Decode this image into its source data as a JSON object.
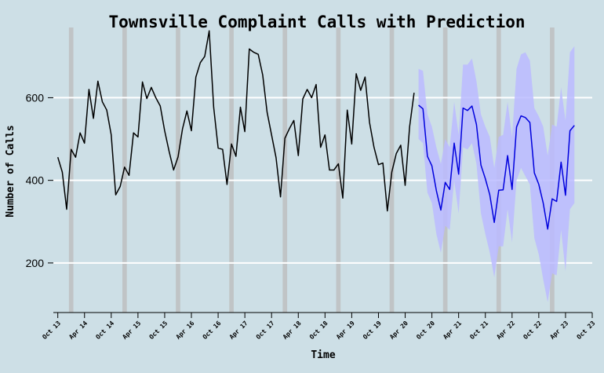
{
  "chart_data": {
    "type": "line",
    "title": "Townsville Complaint Calls with Prediction",
    "xlabel": "Time",
    "ylabel": "Number of Calls",
    "x_ticks": [
      "Oct 13",
      "Apr 14",
      "Oct 14",
      "Apr 15",
      "Oct 15",
      "Apr 16",
      "Oct 16",
      "Apr 17",
      "Oct 17",
      "Apr 18",
      "Oct 18",
      "Apr 19",
      "Oct 19",
      "Apr 20",
      "Oct 20",
      "Apr 21",
      "Oct 21",
      "Apr 22",
      "Oct 22",
      "Apr 23",
      "Oct 23"
    ],
    "y_ticks": [
      200,
      400,
      600
    ],
    "ylim": [
      80,
      770
    ],
    "xlim": [
      -1,
      120
    ],
    "grid": "horizontal",
    "highlight_bands": [
      "Jan 14",
      "Jan 15",
      "Jan 16",
      "Jan 17",
      "Jan 18",
      "Jan 19",
      "Jan 20",
      "Jan 21",
      "Jan 22",
      "Jan 23"
    ],
    "series": [
      {
        "start": "Oct 13",
        "values": [
          456,
          420,
          330,
          475,
          456,
          515,
          490,
          620,
          550,
          640,
          590,
          570,
          510,
          365,
          385,
          432,
          412,
          515,
          505,
          638,
          598,
          625,
          600,
          580,
          520,
          470,
          425,
          457,
          525,
          568,
          520,
          650,
          685,
          700,
          762,
          577,
          478,
          475,
          390,
          488,
          458,
          577,
          518,
          718,
          710,
          705,
          655,
          565,
          510,
          455,
          360,
          502,
          525,
          545,
          460,
          597,
          620,
          600,
          632,
          480,
          510,
          425,
          425,
          440,
          357,
          570,
          488,
          658,
          618,
          650,
          540,
          480,
          438,
          442,
          326,
          420,
          465,
          485,
          388,
          530,
          612
        ]
      },
      {
        "start": "Jul 20",
        "values": [
          582,
          573,
          458,
          435,
          375,
          328,
          395,
          378,
          490,
          415,
          575,
          569,
          580,
          535,
          437,
          404,
          365,
          298,
          376,
          377,
          460,
          378,
          529,
          556,
          552,
          540,
          418,
          390,
          345,
          282,
          355,
          349,
          444,
          364,
          520,
          533
        ],
        "band_lower": [
          500,
          490,
          370,
          345,
          270,
          225,
          290,
          280,
          400,
          320,
          480,
          475,
          490,
          440,
          320,
          270,
          225,
          165,
          240,
          240,
          330,
          250,
          400,
          430,
          410,
          390,
          260,
          220,
          160,
          105,
          175,
          170,
          280,
          180,
          330,
          345
        ],
        "band_upper": [
          670,
          665,
          560,
          530,
          480,
          440,
          500,
          480,
          590,
          510,
          680,
          680,
          695,
          640,
          560,
          530,
          505,
          430,
          505,
          510,
          590,
          505,
          670,
          705,
          710,
          690,
          575,
          555,
          530,
          460,
          535,
          530,
          625,
          545,
          710,
          725
        ]
      }
    ]
  },
  "colors": {
    "background": "#cddfe6",
    "actual_line": "#000000",
    "prediction_line": "#0000dd",
    "prediction_band": "#bbbbff",
    "highlight_band": "#bbbbbb",
    "grid": "#ffffff"
  }
}
